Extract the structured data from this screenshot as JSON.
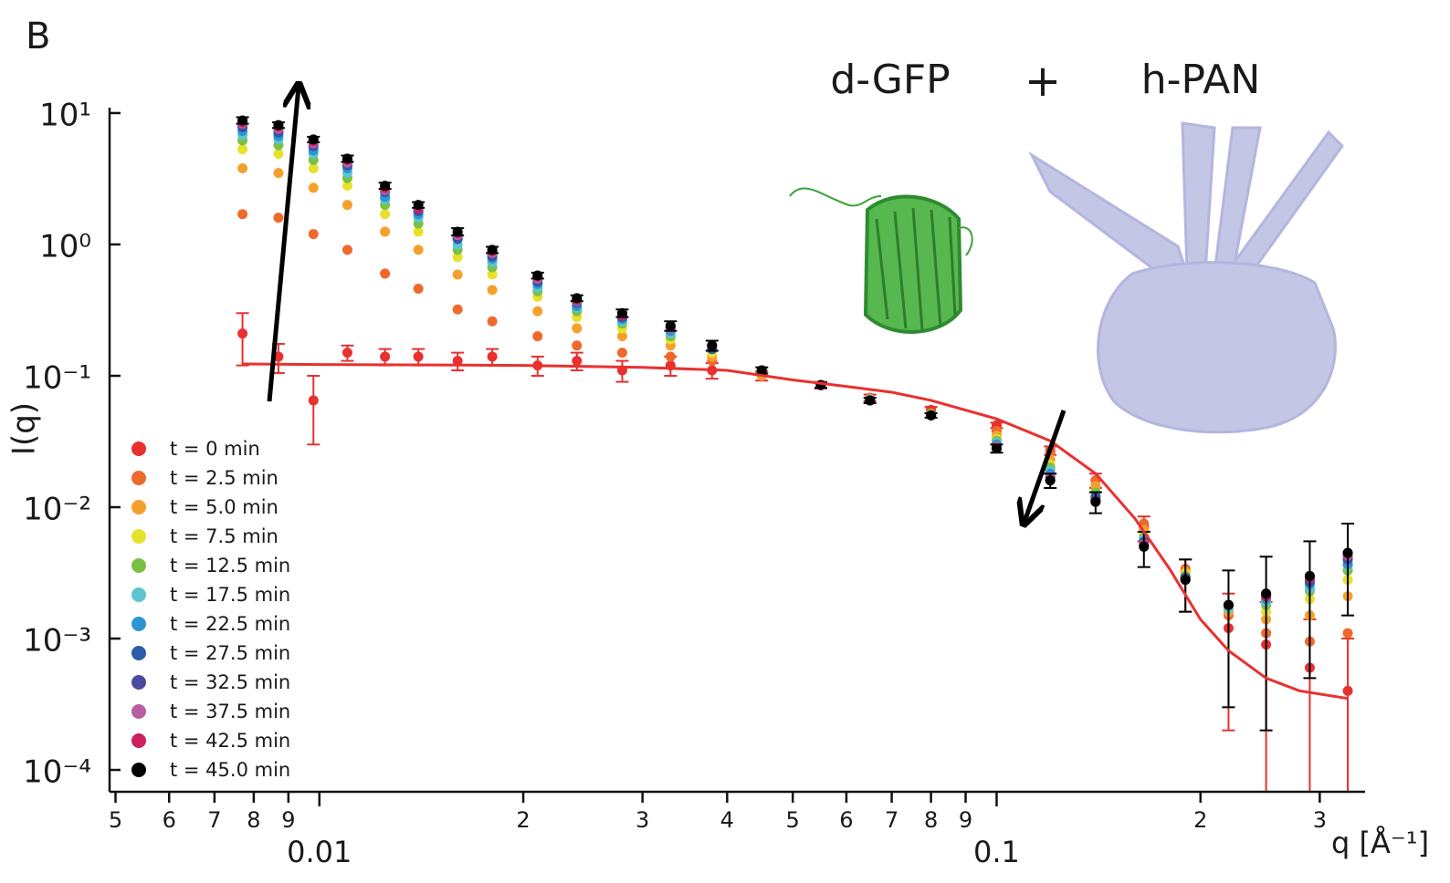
{
  "chart_data": {
    "type": "scatter",
    "panel_label": "B",
    "annotations": [
      "d-GFP",
      "+",
      "h-PAN"
    ],
    "x_label": "q [Å⁻¹]",
    "y_label": "I(q)",
    "xscale": "log",
    "yscale": "log",
    "xlim": [
      0.0049,
      0.35
    ],
    "ylim": [
      8e-05,
      11
    ],
    "xticks": [
      {
        "value": 0.005,
        "label": "5"
      },
      {
        "value": 0.006,
        "label": "6"
      },
      {
        "value": 0.007,
        "label": "7"
      },
      {
        "value": 0.008,
        "label": "8"
      },
      {
        "value": 0.009,
        "label": "9"
      },
      {
        "value": 0.01,
        "label": "0.01"
      },
      {
        "value": 0.02,
        "label": "2"
      },
      {
        "value": 0.03,
        "label": "3"
      },
      {
        "value": 0.04,
        "label": "4"
      },
      {
        "value": 0.05,
        "label": "5"
      },
      {
        "value": 0.06,
        "label": "6"
      },
      {
        "value": 0.07,
        "label": "7"
      },
      {
        "value": 0.08,
        "label": "8"
      },
      {
        "value": 0.09,
        "label": "9"
      },
      {
        "value": 0.1,
        "label": "0.1"
      },
      {
        "value": 0.2,
        "label": "2"
      },
      {
        "value": 0.3,
        "label": "3"
      }
    ],
    "yticks": [
      {
        "value": 10,
        "label": "10¹"
      },
      {
        "value": 1,
        "label": "10⁰"
      },
      {
        "value": 0.1,
        "label": "10⁻¹"
      },
      {
        "value": 0.01,
        "label": "10⁻²"
      },
      {
        "value": 0.001,
        "label": "10⁻³"
      },
      {
        "value": 0.0001,
        "label": "10⁻⁴"
      }
    ],
    "x": [
      0.0077,
      0.0087,
      0.0098,
      0.011,
      0.0125,
      0.014,
      0.016,
      0.018,
      0.021,
      0.024,
      0.028,
      0.033,
      0.038,
      0.045,
      0.055,
      0.065,
      0.08,
      0.1,
      0.12,
      0.14,
      0.165,
      0.19,
      0.22,
      0.25,
      0.29,
      0.33
    ],
    "series": [
      {
        "name": "t = 0 min",
        "color": "#e8312f",
        "values": [
          0.21,
          0.14,
          0.065,
          0.15,
          0.14,
          0.14,
          0.13,
          0.14,
          0.12,
          0.13,
          0.11,
          0.12,
          0.11,
          0.1,
          0.085,
          0.068,
          0.055,
          0.042,
          0.027,
          0.016,
          0.007,
          0.0028,
          0.0012,
          0.0009,
          0.0006,
          0.0004
        ],
        "errors": [
          0.09,
          0.035,
          0.035,
          0.02,
          0.02,
          0.02,
          0.02,
          0.02,
          0.02,
          0.02,
          0.02,
          0.02,
          0.015,
          0.008,
          0.005,
          0.004,
          0.003,
          0.002,
          0.002,
          0.002,
          0.0015,
          0.0012,
          0.001,
          0.001,
          0.0008,
          0.0006
        ]
      },
      {
        "name": "t = 2.5 min",
        "color": "#ee6a2c",
        "values": [
          1.7,
          1.6,
          1.2,
          0.91,
          0.6,
          0.46,
          0.32,
          0.26,
          0.2,
          0.17,
          0.15,
          0.14,
          0.13,
          0.1,
          0.085,
          0.067,
          0.052,
          0.038,
          0.026,
          0.016,
          0.0075,
          0.0034,
          0.0015,
          0.0011,
          0.00095,
          0.0011
        ]
      },
      {
        "name": "t = 5.0 min",
        "color": "#f5a02d",
        "values": [
          3.8,
          3.5,
          2.7,
          2.0,
          1.25,
          0.91,
          0.59,
          0.45,
          0.31,
          0.23,
          0.2,
          0.17,
          0.14,
          0.1,
          0.085,
          0.067,
          0.051,
          0.035,
          0.023,
          0.0145,
          0.0067,
          0.0032,
          0.0016,
          0.0014,
          0.0015,
          0.0021
        ]
      },
      {
        "name": "t = 7.5 min",
        "color": "#e6e12b",
        "values": [
          5.3,
          4.9,
          3.8,
          2.8,
          1.7,
          1.25,
          0.8,
          0.59,
          0.4,
          0.28,
          0.23,
          0.19,
          0.15,
          0.11,
          0.085,
          0.066,
          0.051,
          0.033,
          0.021,
          0.013,
          0.0062,
          0.0031,
          0.0017,
          0.0016,
          0.002,
          0.0028
        ]
      },
      {
        "name": "t = 12.5 min",
        "color": "#7cc043",
        "values": [
          6.2,
          5.7,
          4.4,
          3.2,
          2.0,
          1.44,
          0.91,
          0.67,
          0.44,
          0.31,
          0.25,
          0.2,
          0.16,
          0.11,
          0.085,
          0.066,
          0.051,
          0.032,
          0.02,
          0.013,
          0.0059,
          0.003,
          0.0017,
          0.0018,
          0.0023,
          0.0033
        ]
      },
      {
        "name": "t = 17.5 min",
        "color": "#5cc6cf",
        "values": [
          6.8,
          6.3,
          4.9,
          3.5,
          2.2,
          1.6,
          0.99,
          0.73,
          0.47,
          0.33,
          0.26,
          0.21,
          0.16,
          0.11,
          0.085,
          0.066,
          0.05,
          0.031,
          0.019,
          0.012,
          0.0057,
          0.0029,
          0.0017,
          0.0019,
          0.0024,
          0.0036
        ]
      },
      {
        "name": "t = 22.5 min",
        "color": "#2e95d3",
        "values": [
          7.3,
          6.7,
          5.2,
          3.8,
          2.3,
          1.7,
          1.1,
          0.78,
          0.5,
          0.34,
          0.27,
          0.22,
          0.16,
          0.11,
          0.085,
          0.065,
          0.05,
          0.03,
          0.018,
          0.012,
          0.0055,
          0.0029,
          0.0018,
          0.002,
          0.0026,
          0.0037
        ]
      },
      {
        "name": "t = 27.5 min",
        "color": "#2b5ca8",
        "values": [
          7.8,
          7.1,
          5.6,
          4.0,
          2.5,
          1.8,
          1.1,
          0.81,
          0.52,
          0.36,
          0.28,
          0.23,
          0.16,
          0.11,
          0.085,
          0.065,
          0.05,
          0.029,
          0.017,
          0.012,
          0.0054,
          0.0029,
          0.0018,
          0.0021,
          0.0027,
          0.004
        ]
      },
      {
        "name": "t = 32.5 min",
        "color": "#4b4a9e",
        "values": [
          8.0,
          7.4,
          5.7,
          4.1,
          2.6,
          1.8,
          1.15,
          0.84,
          0.54,
          0.37,
          0.28,
          0.23,
          0.17,
          0.11,
          0.085,
          0.065,
          0.05,
          0.029,
          0.017,
          0.0115,
          0.0053,
          0.0029,
          0.0018,
          0.0021,
          0.0028,
          0.0041
        ]
      },
      {
        "name": "t = 37.5 min",
        "color": "#b65ea5",
        "values": [
          8.3,
          7.6,
          5.9,
          4.2,
          2.6,
          1.9,
          1.18,
          0.86,
          0.55,
          0.37,
          0.29,
          0.23,
          0.17,
          0.11,
          0.085,
          0.065,
          0.05,
          0.029,
          0.017,
          0.011,
          0.0052,
          0.0028,
          0.0018,
          0.0022,
          0.0029,
          0.0043
        ]
      },
      {
        "name": "t = 42.5 min",
        "color": "#cc1f5c",
        "values": [
          8.5,
          7.9,
          6.1,
          4.4,
          2.7,
          1.9,
          1.22,
          0.89,
          0.57,
          0.38,
          0.29,
          0.24,
          0.17,
          0.11,
          0.085,
          0.065,
          0.05,
          0.028,
          0.016,
          0.011,
          0.0051,
          0.0028,
          0.0018,
          0.0021,
          0.0029,
          0.0044
        ]
      },
      {
        "name": "t = 45.0 min",
        "color": "#000000",
        "values": [
          8.8,
          8.1,
          6.3,
          4.5,
          2.8,
          2.0,
          1.25,
          0.91,
          0.58,
          0.39,
          0.3,
          0.24,
          0.17,
          0.11,
          0.085,
          0.065,
          0.05,
          0.028,
          0.016,
          0.011,
          0.005,
          0.0028,
          0.0018,
          0.0022,
          0.003,
          0.0045
        ],
        "errors": [
          0.5,
          0.4,
          0.3,
          0.25,
          0.15,
          0.1,
          0.08,
          0.05,
          0.03,
          0.02,
          0.02,
          0.02,
          0.015,
          0.006,
          0.004,
          0.003,
          0.002,
          0.002,
          0.002,
          0.002,
          0.0015,
          0.0012,
          0.0015,
          0.002,
          0.0025,
          0.003
        ]
      }
    ],
    "fit": {
      "color": "#e8312f",
      "x": [
        0.0077,
        0.01,
        0.015,
        0.02,
        0.03,
        0.04,
        0.05,
        0.06,
        0.07,
        0.08,
        0.1,
        0.12,
        0.14,
        0.16,
        0.18,
        0.2,
        0.22,
        0.25,
        0.28,
        0.33
      ],
      "values": [
        0.123,
        0.122,
        0.121,
        0.12,
        0.116,
        0.11,
        0.093,
        0.083,
        0.075,
        0.065,
        0.047,
        0.032,
        0.018,
        0.0082,
        0.0034,
        0.0014,
        0.00081,
        0.0005,
        0.0004,
        0.00035
      ]
    }
  }
}
